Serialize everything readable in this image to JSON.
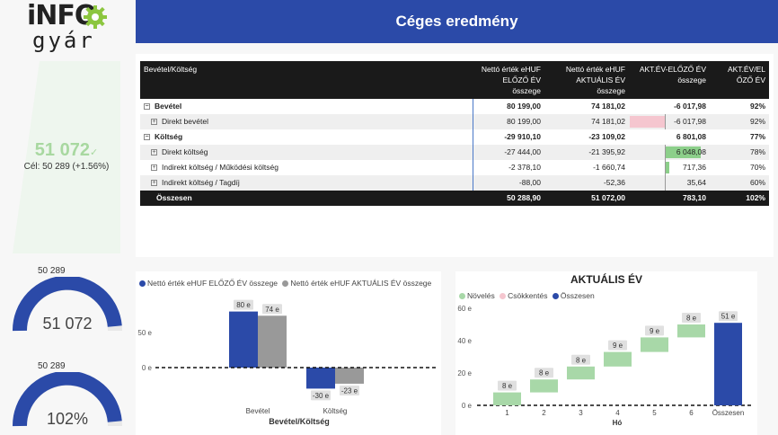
{
  "logo": {
    "line1": "iNFO",
    "line2": "gyár"
  },
  "header": {
    "title": "Céges eredmény"
  },
  "kpi": {
    "value": "51 072",
    "goal": "Cél: 50 289 (+1.56%)",
    "check": "✓"
  },
  "table": {
    "headers": [
      "Bevétel/Költség",
      "Nettó érték eHUF ELŐZŐ ÉV összege",
      "Nettó érték eHUF AKTUÁLIS ÉV összege",
      "AKT.ÉV-ELŐZŐ ÉV összege",
      "AKT.ÉV/EL ŐZŐ ÉV"
    ],
    "rows": [
      {
        "label": "Bevétel",
        "prev": "80 199,00",
        "curr": "74 181,02",
        "diff": "-6 017,98",
        "ratio": "92%",
        "level": 0,
        "kind": "group"
      },
      {
        "label": "Direkt bevétel",
        "prev": "80 199,00",
        "curr": "74 181,02",
        "diff": "-6 017,98",
        "ratio": "92%",
        "level": 1,
        "kind": "row",
        "diff_value": -6017.98
      },
      {
        "label": "Költség",
        "prev": "-29 910,10",
        "curr": "-23 109,02",
        "diff": "6 801,08",
        "ratio": "77%",
        "level": 0,
        "kind": "group"
      },
      {
        "label": "Direkt költség",
        "prev": "-27 444,00",
        "curr": "-21 395,92",
        "diff": "6 048,08",
        "ratio": "78%",
        "level": 1,
        "kind": "row",
        "diff_value": 6048.08
      },
      {
        "label": "Indirekt költség / Működési költség",
        "prev": "-2 378,10",
        "curr": "-1 660,74",
        "diff": "717,36",
        "ratio": "70%",
        "level": 1,
        "kind": "row",
        "diff_value": 717.36
      },
      {
        "label": "Indirekt költség / Tagdíj",
        "prev": "-88,00",
        "curr": "-52,36",
        "diff": "35,64",
        "ratio": "60%",
        "level": 1,
        "kind": "row",
        "diff_value": 35.64
      }
    ],
    "total": {
      "label": "Összesen",
      "prev": "50 288,90",
      "curr": "51 072,00",
      "diff": "783,10",
      "ratio": "102%"
    }
  },
  "gauges": [
    {
      "top_label": "50 289",
      "value_label": "51 072",
      "fraction": 0.97
    },
    {
      "top_label": "50 289",
      "value_label": "102%",
      "fraction": 0.97
    }
  ],
  "colors": {
    "blue": "#2b4aa8",
    "gray": "#999999",
    "green": "#a8d8a8",
    "pink": "#f5c6cf",
    "header": "#2b4aa8"
  },
  "chart_data": [
    {
      "type": "bar",
      "title": "",
      "legend": [
        "Nettó érték eHUF ELŐZŐ ÉV összege",
        "Nettó érték eHUF AKTUÁLIS ÉV  összege"
      ],
      "categories": [
        "Bevétel",
        "Költség"
      ],
      "series": [
        {
          "name": "Nettó érték eHUF ELŐZŐ ÉV összege",
          "values": [
            80,
            -30
          ],
          "labels": [
            "80 e",
            "-30 e"
          ],
          "color": "#2b4aa8"
        },
        {
          "name": "Nettó érték eHUF AKTUÁLIS ÉV  összege",
          "values": [
            74,
            -23
          ],
          "labels": [
            "74 e",
            "-23 e"
          ],
          "color": "#999999"
        }
      ],
      "xlabel": "Bevétel/Költség",
      "ylabel": "",
      "yticks": [
        "50 e",
        "0 e"
      ],
      "ylim": [
        -45,
        95
      ]
    },
    {
      "type": "waterfall",
      "title": "AKTUÁLIS ÉV",
      "legend": [
        "Növelés",
        "Csökkentés",
        "Összesen"
      ],
      "categories": [
        "1",
        "2",
        "3",
        "4",
        "5",
        "6",
        "Összesen"
      ],
      "increments": [
        8,
        8,
        8,
        9,
        9,
        8,
        51
      ],
      "labels": [
        "8 e",
        "8 e",
        "8 e",
        "9 e",
        "9 e",
        "8 e",
        "51 e"
      ],
      "xlabel": "Hó",
      "yticks": [
        "0 e",
        "20 e",
        "40 e",
        "60 e"
      ],
      "ylim": [
        0,
        60
      ]
    }
  ]
}
